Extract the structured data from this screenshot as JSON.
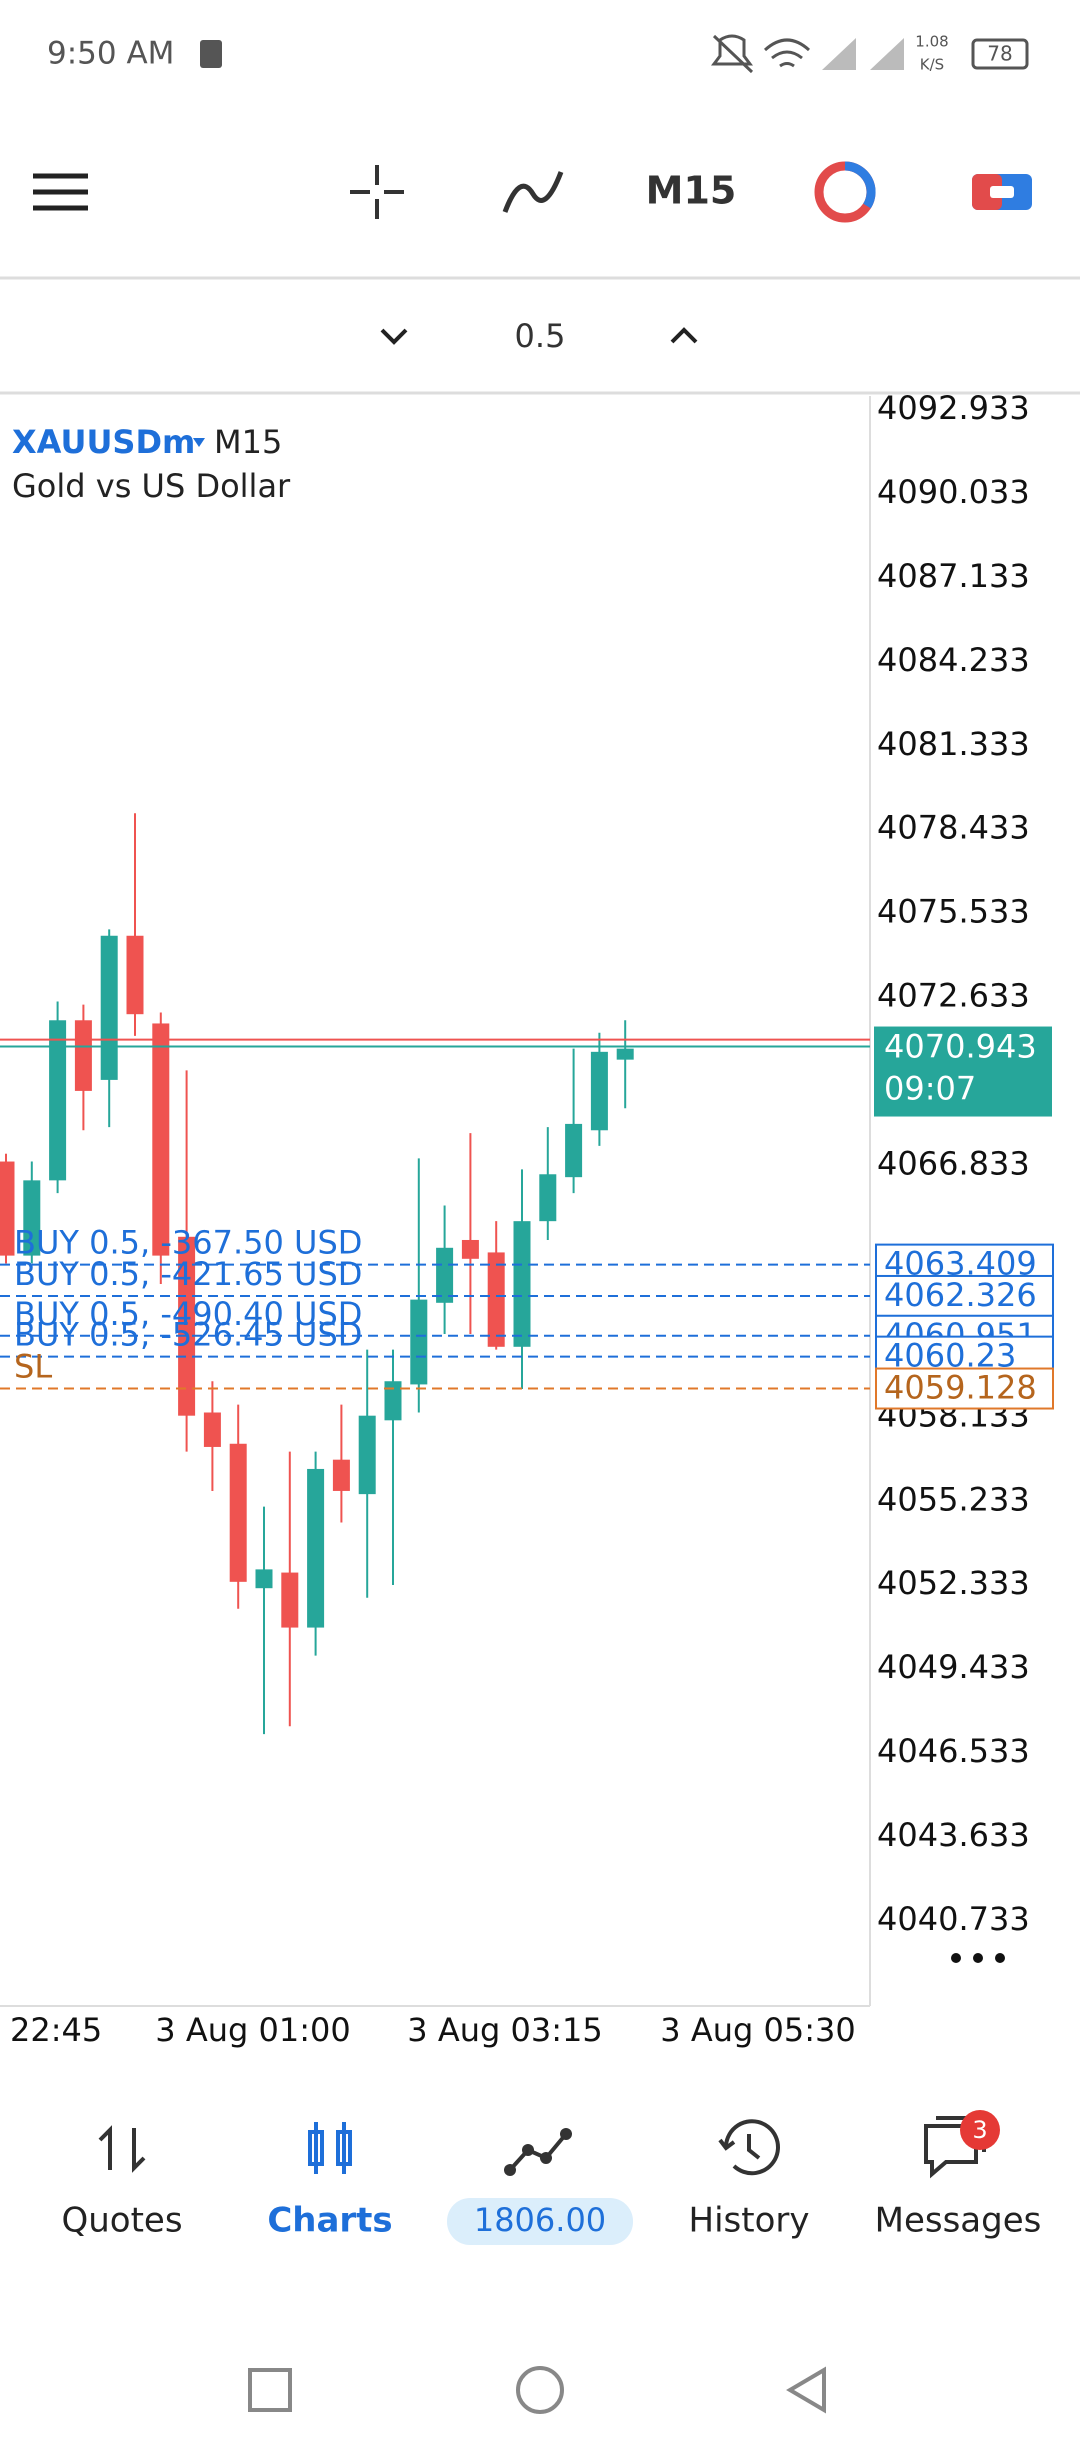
{
  "status_bar": {
    "time": "9:50 AM",
    "net_speed": "1.08",
    "net_unit": "K/S",
    "battery": "78"
  },
  "toolbar": {
    "timeframe": "M15"
  },
  "lot": {
    "value": 0.5
  },
  "chart": {
    "symbol": "XAUUSDm",
    "timeframe": "M15",
    "description": "Gold vs US Dollar",
    "price_ticks": [
      4092.933,
      4090.033,
      4087.133,
      4084.233,
      4081.333,
      4078.433,
      4075.533,
      4072.633,
      4066.833,
      4058.133,
      4055.233,
      4052.333,
      4049.433,
      4046.533,
      4043.633,
      4040.733
    ],
    "time_labels": [
      "22:45",
      "3 Aug 01:00",
      "3 Aug 03:15",
      "3 Aug 05:30"
    ],
    "candles": [
      {
        "open": 4066.97,
        "high": 4067.24,
        "low": 4063.45,
        "close": 4063.72
      },
      {
        "open": 4063.72,
        "high": 4066.97,
        "low": 4063.45,
        "close": 4066.32
      },
      {
        "open": 4066.32,
        "high": 4072.5,
        "low": 4065.88,
        "close": 4071.85
      },
      {
        "open": 4071.85,
        "high": 4072.39,
        "low": 4068.05,
        "close": 4069.41
      },
      {
        "open": 4069.79,
        "high": 4074.99,
        "low": 4068.16,
        "close": 4074.77
      },
      {
        "open": 4074.77,
        "high": 4079.0,
        "low": 4071.31,
        "close": 4072.06
      },
      {
        "open": 4071.74,
        "high": 4072.12,
        "low": 4062.74,
        "close": 4063.72
      },
      {
        "open": 4064.37,
        "high": 4070.12,
        "low": 4056.95,
        "close": 4058.19
      },
      {
        "open": 4058.3,
        "high": 4059.38,
        "low": 4055.59,
        "close": 4057.11
      },
      {
        "open": 4057.22,
        "high": 4058.57,
        "low": 4051.52,
        "close": 4052.45
      },
      {
        "open": 4052.23,
        "high": 4055.05,
        "low": 4047.19,
        "close": 4052.88
      },
      {
        "open": 4052.77,
        "high": 4056.95,
        "low": 4047.46,
        "close": 4050.87
      },
      {
        "open": 4050.87,
        "high": 4056.95,
        "low": 4049.9,
        "close": 4056.35
      },
      {
        "open": 4056.67,
        "high": 4058.57,
        "low": 4054.5,
        "close": 4055.59
      },
      {
        "open": 4055.48,
        "high": 4060.47,
        "low": 4051.9,
        "close": 4058.19
      },
      {
        "open": 4058.03,
        "high": 4060.47,
        "low": 4052.34,
        "close": 4059.38
      },
      {
        "open": 4059.27,
        "high": 4067.08,
        "low": 4058.3,
        "close": 4062.2
      },
      {
        "open": 4062.09,
        "high": 4065.45,
        "low": 4061.01,
        "close": 4063.99
      },
      {
        "open": 4064.26,
        "high": 4067.95,
        "low": 4061.01,
        "close": 4063.61
      },
      {
        "open": 4063.83,
        "high": 4064.91,
        "low": 4060.47,
        "close": 4060.57
      },
      {
        "open": 4060.57,
        "high": 4066.7,
        "low": 4059.11,
        "close": 4064.91
      },
      {
        "open": 4064.91,
        "high": 4068.16,
        "low": 4064.26,
        "close": 4066.53
      },
      {
        "open": 4066.43,
        "high": 4070.87,
        "low": 4065.88,
        "close": 4068.27
      },
      {
        "open": 4068.05,
        "high": 4071.42,
        "low": 4067.51,
        "close": 4070.76
      },
      {
        "open": 4070.49,
        "high": 4071.85,
        "low": 4068.81,
        "close": 4070.87
      }
    ],
    "up_color": "#26a69a",
    "down_color": "#ef5350",
    "bid_price": 4070.943,
    "ask_price": 4071.18,
    "current_time": "09:07",
    "positions": [
      {
        "label": "BUY 0.5, -367.50 USD",
        "price": 4063.409
      },
      {
        "label": "BUY 0.5, -421.65 USD",
        "price": 4062.326
      },
      {
        "label": "BUY 0.5, -490.40 USD",
        "price": 4060.951
      },
      {
        "label": "BUY 0.5, -526.45 USD",
        "price": 4060.23
      }
    ],
    "stop_loss": {
      "label": "SL",
      "price": 4059.128
    }
  },
  "nav": {
    "items": [
      "Quotes",
      "Charts",
      "History",
      "Messages"
    ],
    "balance": "1806.00",
    "badge": "3"
  }
}
